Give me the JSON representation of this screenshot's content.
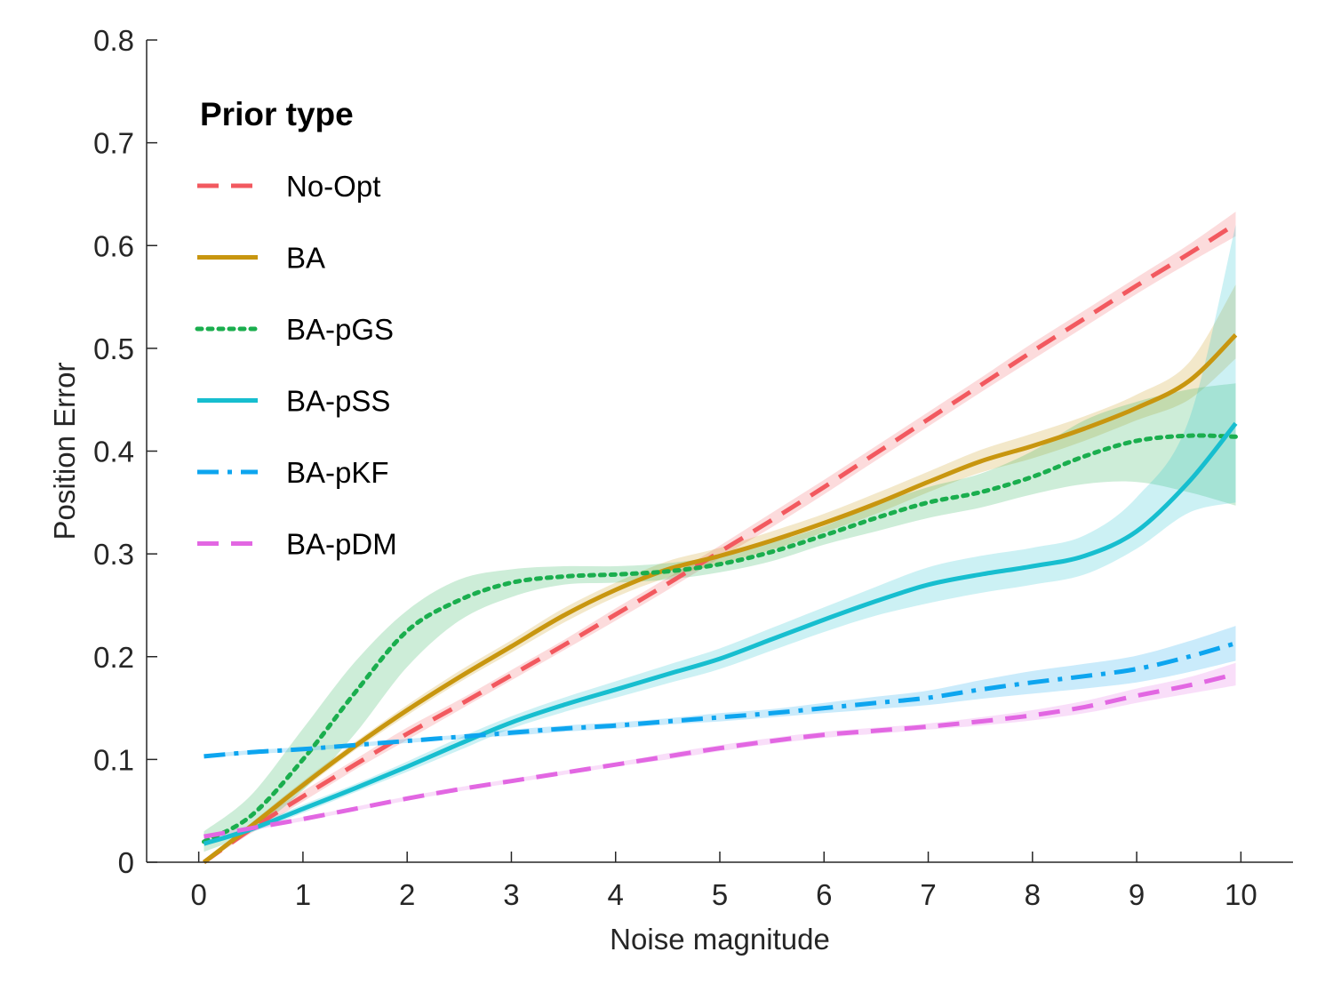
{
  "chart_data": {
    "type": "line",
    "title": "",
    "xlabel": "Noise magnitude",
    "ylabel": "Position Error",
    "xlim": [
      -0.5,
      10.5
    ],
    "ylim": [
      0,
      0.8
    ],
    "x_ticks": [
      0,
      1,
      2,
      3,
      4,
      5,
      6,
      7,
      8,
      9,
      10
    ],
    "x_tick_labels": [
      "0",
      "1",
      "2",
      "3",
      "4",
      "5",
      "6",
      "7",
      "8",
      "9",
      "10"
    ],
    "y_ticks": [
      0,
      0.1,
      0.2,
      0.3,
      0.4,
      0.5,
      0.6,
      0.7,
      0.8
    ],
    "y_tick_labels": [
      "0",
      "0.1",
      "0.2",
      "0.3",
      "0.4",
      "0.5",
      "0.6",
      "0.7",
      "0.8"
    ],
    "grid": false,
    "legend": {
      "title": "Prior type",
      "placement": "top-left"
    },
    "x": [
      0.05,
      0.5,
      1,
      1.5,
      2,
      2.5,
      3,
      3.5,
      4,
      4.5,
      5,
      5.5,
      6,
      6.5,
      7,
      7.5,
      8,
      8.5,
      9,
      9.5,
      9.95
    ],
    "series": [
      {
        "name": "No-Opt",
        "color": "#F2595F",
        "dash": "dashed",
        "values": [
          0.0,
          0.032,
          0.064,
          0.095,
          0.125,
          0.153,
          0.182,
          0.211,
          0.241,
          0.271,
          0.302,
          0.333,
          0.365,
          0.398,
          0.431,
          0.464,
          0.497,
          0.529,
          0.561,
          0.592,
          0.621
        ],
        "lower": [
          0.0,
          0.028,
          0.059,
          0.09,
          0.119,
          0.148,
          0.177,
          0.206,
          0.235,
          0.265,
          0.296,
          0.326,
          0.358,
          0.391,
          0.424,
          0.457,
          0.489,
          0.521,
          0.553,
          0.583,
          0.609
        ],
        "upper": [
          0.0,
          0.036,
          0.069,
          0.1,
          0.131,
          0.158,
          0.187,
          0.216,
          0.247,
          0.277,
          0.308,
          0.34,
          0.372,
          0.405,
          0.438,
          0.471,
          0.505,
          0.537,
          0.569,
          0.601,
          0.633
        ]
      },
      {
        "name": "BA",
        "color": "#C8960F",
        "dash": "solid",
        "values": [
          0.0,
          0.035,
          0.075,
          0.113,
          0.148,
          0.18,
          0.21,
          0.24,
          0.265,
          0.285,
          0.298,
          0.313,
          0.33,
          0.349,
          0.37,
          0.39,
          0.405,
          0.422,
          0.442,
          0.468,
          0.513
        ],
        "lower": [
          0.0,
          0.032,
          0.071,
          0.109,
          0.143,
          0.175,
          0.204,
          0.233,
          0.258,
          0.277,
          0.29,
          0.304,
          0.321,
          0.339,
          0.36,
          0.379,
          0.393,
          0.41,
          0.43,
          0.45,
          0.49
        ],
        "upper": [
          0.0,
          0.038,
          0.079,
          0.117,
          0.153,
          0.186,
          0.216,
          0.247,
          0.272,
          0.293,
          0.306,
          0.322,
          0.339,
          0.359,
          0.38,
          0.401,
          0.417,
          0.434,
          0.455,
          0.486,
          0.562
        ]
      },
      {
        "name": "BA-pGS",
        "color": "#1AAE4E",
        "dash": "dotted",
        "values": [
          0.02,
          0.045,
          0.1,
          0.165,
          0.225,
          0.255,
          0.272,
          0.278,
          0.28,
          0.283,
          0.29,
          0.302,
          0.318,
          0.335,
          0.35,
          0.36,
          0.375,
          0.395,
          0.41,
          0.415,
          0.414
        ],
        "lower": [
          0.01,
          0.03,
          0.07,
          0.125,
          0.19,
          0.235,
          0.258,
          0.27,
          0.272,
          0.275,
          0.282,
          0.293,
          0.309,
          0.322,
          0.335,
          0.345,
          0.358,
          0.368,
          0.37,
          0.36,
          0.347
        ],
        "upper": [
          0.03,
          0.065,
          0.13,
          0.195,
          0.245,
          0.275,
          0.285,
          0.288,
          0.288,
          0.291,
          0.298,
          0.311,
          0.327,
          0.348,
          0.365,
          0.378,
          0.4,
          0.43,
          0.448,
          0.46,
          0.466
        ]
      },
      {
        "name": "BA-pSS",
        "color": "#17BECF",
        "dash": "solid",
        "values": [
          0.018,
          0.032,
          0.052,
          0.072,
          0.093,
          0.115,
          0.136,
          0.153,
          0.168,
          0.183,
          0.198,
          0.217,
          0.236,
          0.254,
          0.27,
          0.28,
          0.288,
          0.298,
          0.322,
          0.37,
          0.427
        ],
        "lower": [
          0.016,
          0.029,
          0.048,
          0.068,
          0.088,
          0.109,
          0.13,
          0.146,
          0.16,
          0.174,
          0.188,
          0.206,
          0.224,
          0.24,
          0.252,
          0.262,
          0.27,
          0.28,
          0.305,
          0.34,
          0.35
        ],
        "upper": [
          0.02,
          0.035,
          0.056,
          0.076,
          0.098,
          0.121,
          0.142,
          0.16,
          0.176,
          0.192,
          0.208,
          0.228,
          0.248,
          0.268,
          0.287,
          0.298,
          0.306,
          0.318,
          0.355,
          0.43,
          0.62
        ]
      },
      {
        "name": "BA-pKF",
        "color": "#0DA5EF",
        "dash": "dashdot",
        "values": [
          0.103,
          0.107,
          0.11,
          0.114,
          0.118,
          0.122,
          0.126,
          0.13,
          0.133,
          0.137,
          0.141,
          0.145,
          0.15,
          0.155,
          0.16,
          0.168,
          0.175,
          0.181,
          0.188,
          0.2,
          0.213
        ],
        "lower": [
          0.101,
          0.105,
          0.108,
          0.112,
          0.116,
          0.12,
          0.123,
          0.127,
          0.13,
          0.134,
          0.137,
          0.141,
          0.145,
          0.149,
          0.153,
          0.159,
          0.164,
          0.169,
          0.175,
          0.185,
          0.196
        ],
        "upper": [
          0.105,
          0.109,
          0.112,
          0.116,
          0.12,
          0.124,
          0.129,
          0.133,
          0.136,
          0.14,
          0.145,
          0.149,
          0.155,
          0.161,
          0.167,
          0.177,
          0.186,
          0.193,
          0.201,
          0.215,
          0.23
        ]
      },
      {
        "name": "BA-pDM",
        "color": "#E267E2",
        "dash": "dashed",
        "values": [
          0.025,
          0.033,
          0.042,
          0.052,
          0.062,
          0.071,
          0.079,
          0.087,
          0.095,
          0.103,
          0.111,
          0.118,
          0.124,
          0.128,
          0.132,
          0.137,
          0.143,
          0.151,
          0.162,
          0.172,
          0.183
        ],
        "lower": [
          0.024,
          0.031,
          0.04,
          0.05,
          0.06,
          0.069,
          0.077,
          0.085,
          0.093,
          0.1,
          0.108,
          0.115,
          0.121,
          0.125,
          0.129,
          0.133,
          0.138,
          0.145,
          0.155,
          0.164,
          0.172
        ],
        "upper": [
          0.026,
          0.035,
          0.044,
          0.054,
          0.064,
          0.073,
          0.081,
          0.089,
          0.097,
          0.106,
          0.114,
          0.121,
          0.127,
          0.131,
          0.135,
          0.141,
          0.148,
          0.157,
          0.169,
          0.18,
          0.194
        ]
      }
    ]
  }
}
